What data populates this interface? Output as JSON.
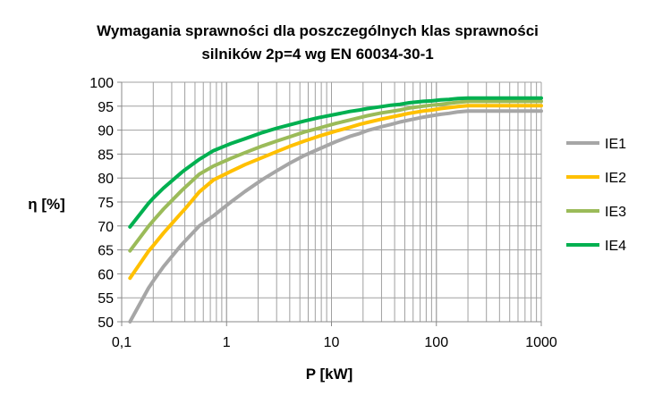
{
  "chart_data": {
    "type": "line",
    "title": "Wymagania sprawności dla poszczególnych klas sprawności",
    "subtitle": "silników 2p=4 wg EN 60034-30-1",
    "xlabel": "P [kW]",
    "ylabel": "η [%]",
    "xscale": "log",
    "xlim": [
      0.1,
      1000
    ],
    "ylim": [
      50,
      100
    ],
    "grid": true,
    "legend_position": "right",
    "x_ticks": [
      "0,1",
      "1",
      "10",
      "100",
      "1000"
    ],
    "y_ticks": [
      "50",
      "55",
      "60",
      "65",
      "70",
      "75",
      "80",
      "85",
      "90",
      "95",
      "100"
    ],
    "x": [
      0.12,
      0.18,
      0.2,
      0.25,
      0.37,
      0.4,
      0.55,
      0.75,
      1.1,
      1.5,
      2.2,
      3,
      4,
      5.5,
      7.5,
      11,
      15,
      18.5,
      22,
      30,
      37,
      45,
      55,
      75,
      90,
      110,
      132,
      160,
      200,
      1000
    ],
    "series": [
      {
        "name": "IE1",
        "color": "#a6a6a6",
        "values": [
          50.0,
          57.0,
          58.5,
          61.5,
          66.0,
          66.8,
          70.0,
          72.1,
          75.0,
          77.2,
          79.7,
          81.5,
          83.1,
          84.7,
          86.0,
          87.6,
          88.7,
          89.3,
          89.9,
          90.7,
          91.2,
          91.7,
          92.1,
          92.7,
          93.0,
          93.3,
          93.5,
          93.8,
          94.0,
          94.0
        ]
      },
      {
        "name": "IE2",
        "color": "#ffc000",
        "values": [
          59.1,
          64.7,
          65.9,
          68.5,
          72.7,
          73.5,
          77.1,
          79.6,
          81.4,
          82.8,
          84.3,
          85.5,
          86.6,
          87.7,
          88.7,
          89.8,
          90.6,
          91.2,
          91.6,
          92.3,
          92.7,
          93.1,
          93.5,
          94.0,
          94.2,
          94.5,
          94.7,
          94.9,
          95.1,
          95.1
        ]
      },
      {
        "name": "IE3",
        "color": "#9bbb59",
        "values": [
          64.8,
          69.9,
          71.1,
          73.5,
          77.3,
          78.0,
          80.8,
          82.5,
          84.1,
          85.3,
          86.7,
          87.7,
          88.6,
          89.6,
          90.4,
          91.4,
          92.1,
          92.6,
          93.0,
          93.6,
          93.9,
          94.2,
          94.6,
          95.0,
          95.2,
          95.4,
          95.6,
          95.8,
          96.0,
          96.0
        ]
      },
      {
        "name": "IE4",
        "color": "#00b050",
        "values": [
          69.8,
          74.7,
          75.8,
          77.9,
          81.1,
          81.7,
          83.9,
          85.7,
          87.2,
          88.2,
          89.5,
          90.4,
          91.1,
          91.9,
          92.6,
          93.3,
          93.9,
          94.2,
          94.5,
          94.9,
          95.2,
          95.4,
          95.7,
          96.0,
          96.1,
          96.3,
          96.4,
          96.6,
          96.7,
          96.7
        ]
      }
    ]
  }
}
